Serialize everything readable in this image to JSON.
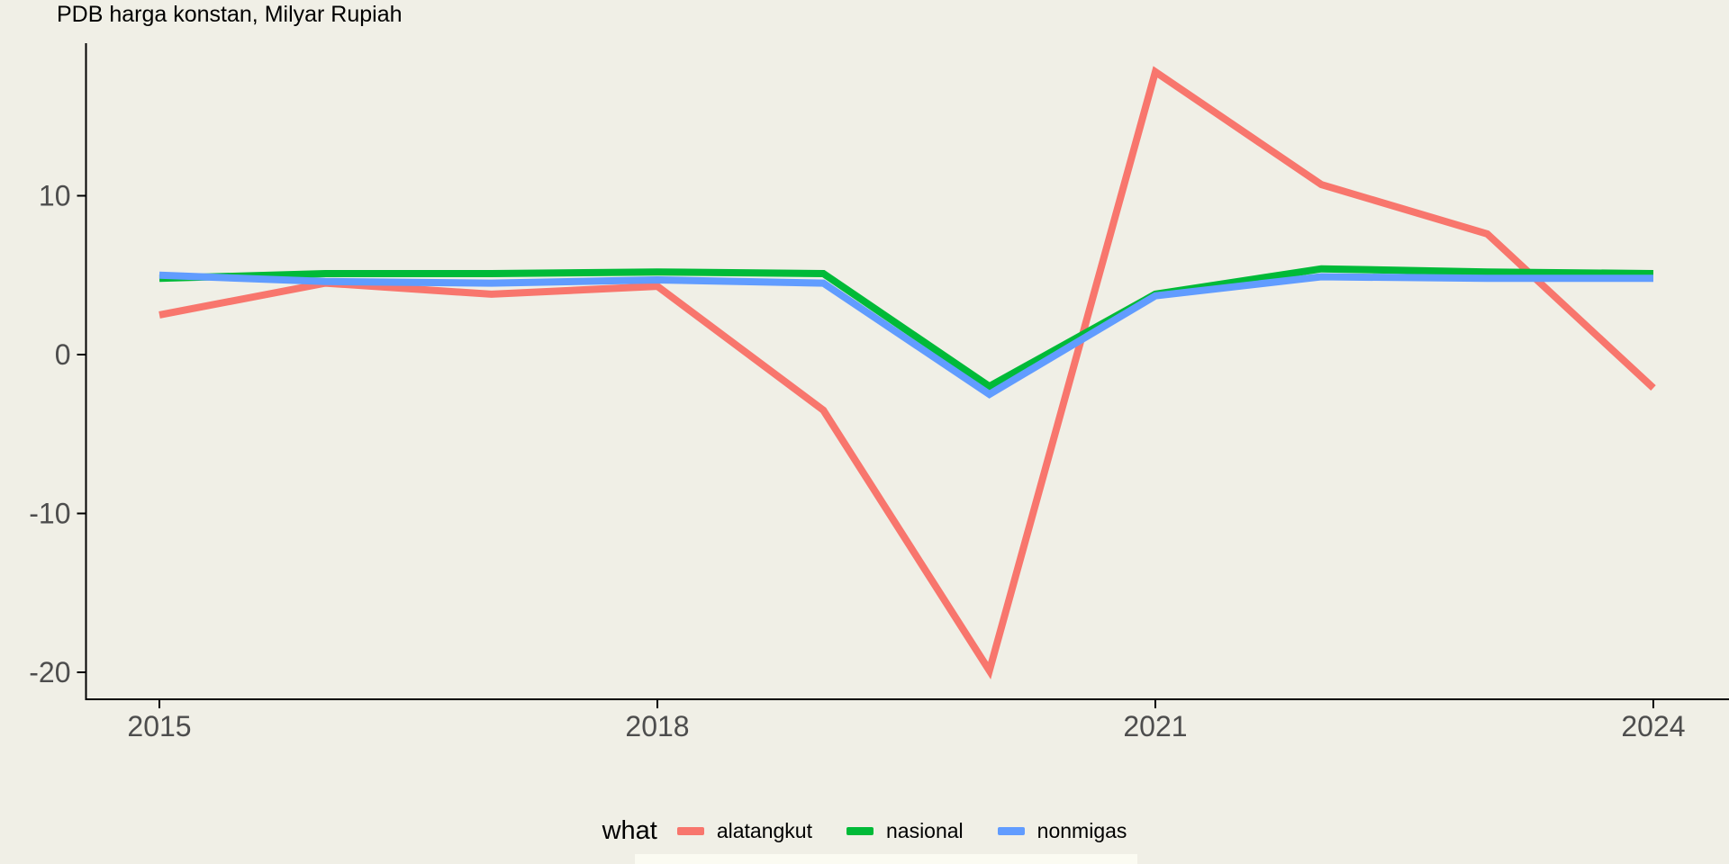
{
  "chart_data": {
    "type": "line",
    "title": "PDB harga konstan, Milyar Rupiah",
    "xlabel": "",
    "ylabel": "",
    "x": [
      2015,
      2016,
      2017,
      2018,
      2019,
      2020,
      2021,
      2022,
      2023,
      2024
    ],
    "series": [
      {
        "name": "alatangkut",
        "color": "#F8766D",
        "values": [
          2.5,
          4.5,
          3.8,
          4.3,
          -3.5,
          -19.9,
          17.8,
          10.7,
          7.6,
          -2.1
        ]
      },
      {
        "name": "nasional",
        "color": "#00BA38",
        "values": [
          4.8,
          5.1,
          5.1,
          5.2,
          5.1,
          -2.0,
          3.8,
          5.4,
          5.2,
          5.1
        ]
      },
      {
        "name": "nonmigas",
        "color": "#619CFF",
        "values": [
          5.0,
          4.6,
          4.5,
          4.7,
          4.5,
          -2.5,
          3.7,
          4.9,
          4.8,
          4.8
        ]
      }
    ],
    "xticks": [
      2015,
      2018,
      2021,
      2024
    ],
    "yticks": [
      10,
      0,
      -10,
      -20
    ],
    "xlim": [
      2014.55,
      2024.46
    ],
    "ylim": [
      -21.7,
      19.6
    ],
    "grid": false,
    "legend_title": "what",
    "legend_position": "bottom",
    "colors": {
      "background": "#F0EFE6",
      "axis_line": "#000000",
      "axis_text": "#4D4D4D",
      "title_text": "#000000",
      "legend_text": "#000000",
      "bottom_strip": "#FBFBF2"
    }
  }
}
